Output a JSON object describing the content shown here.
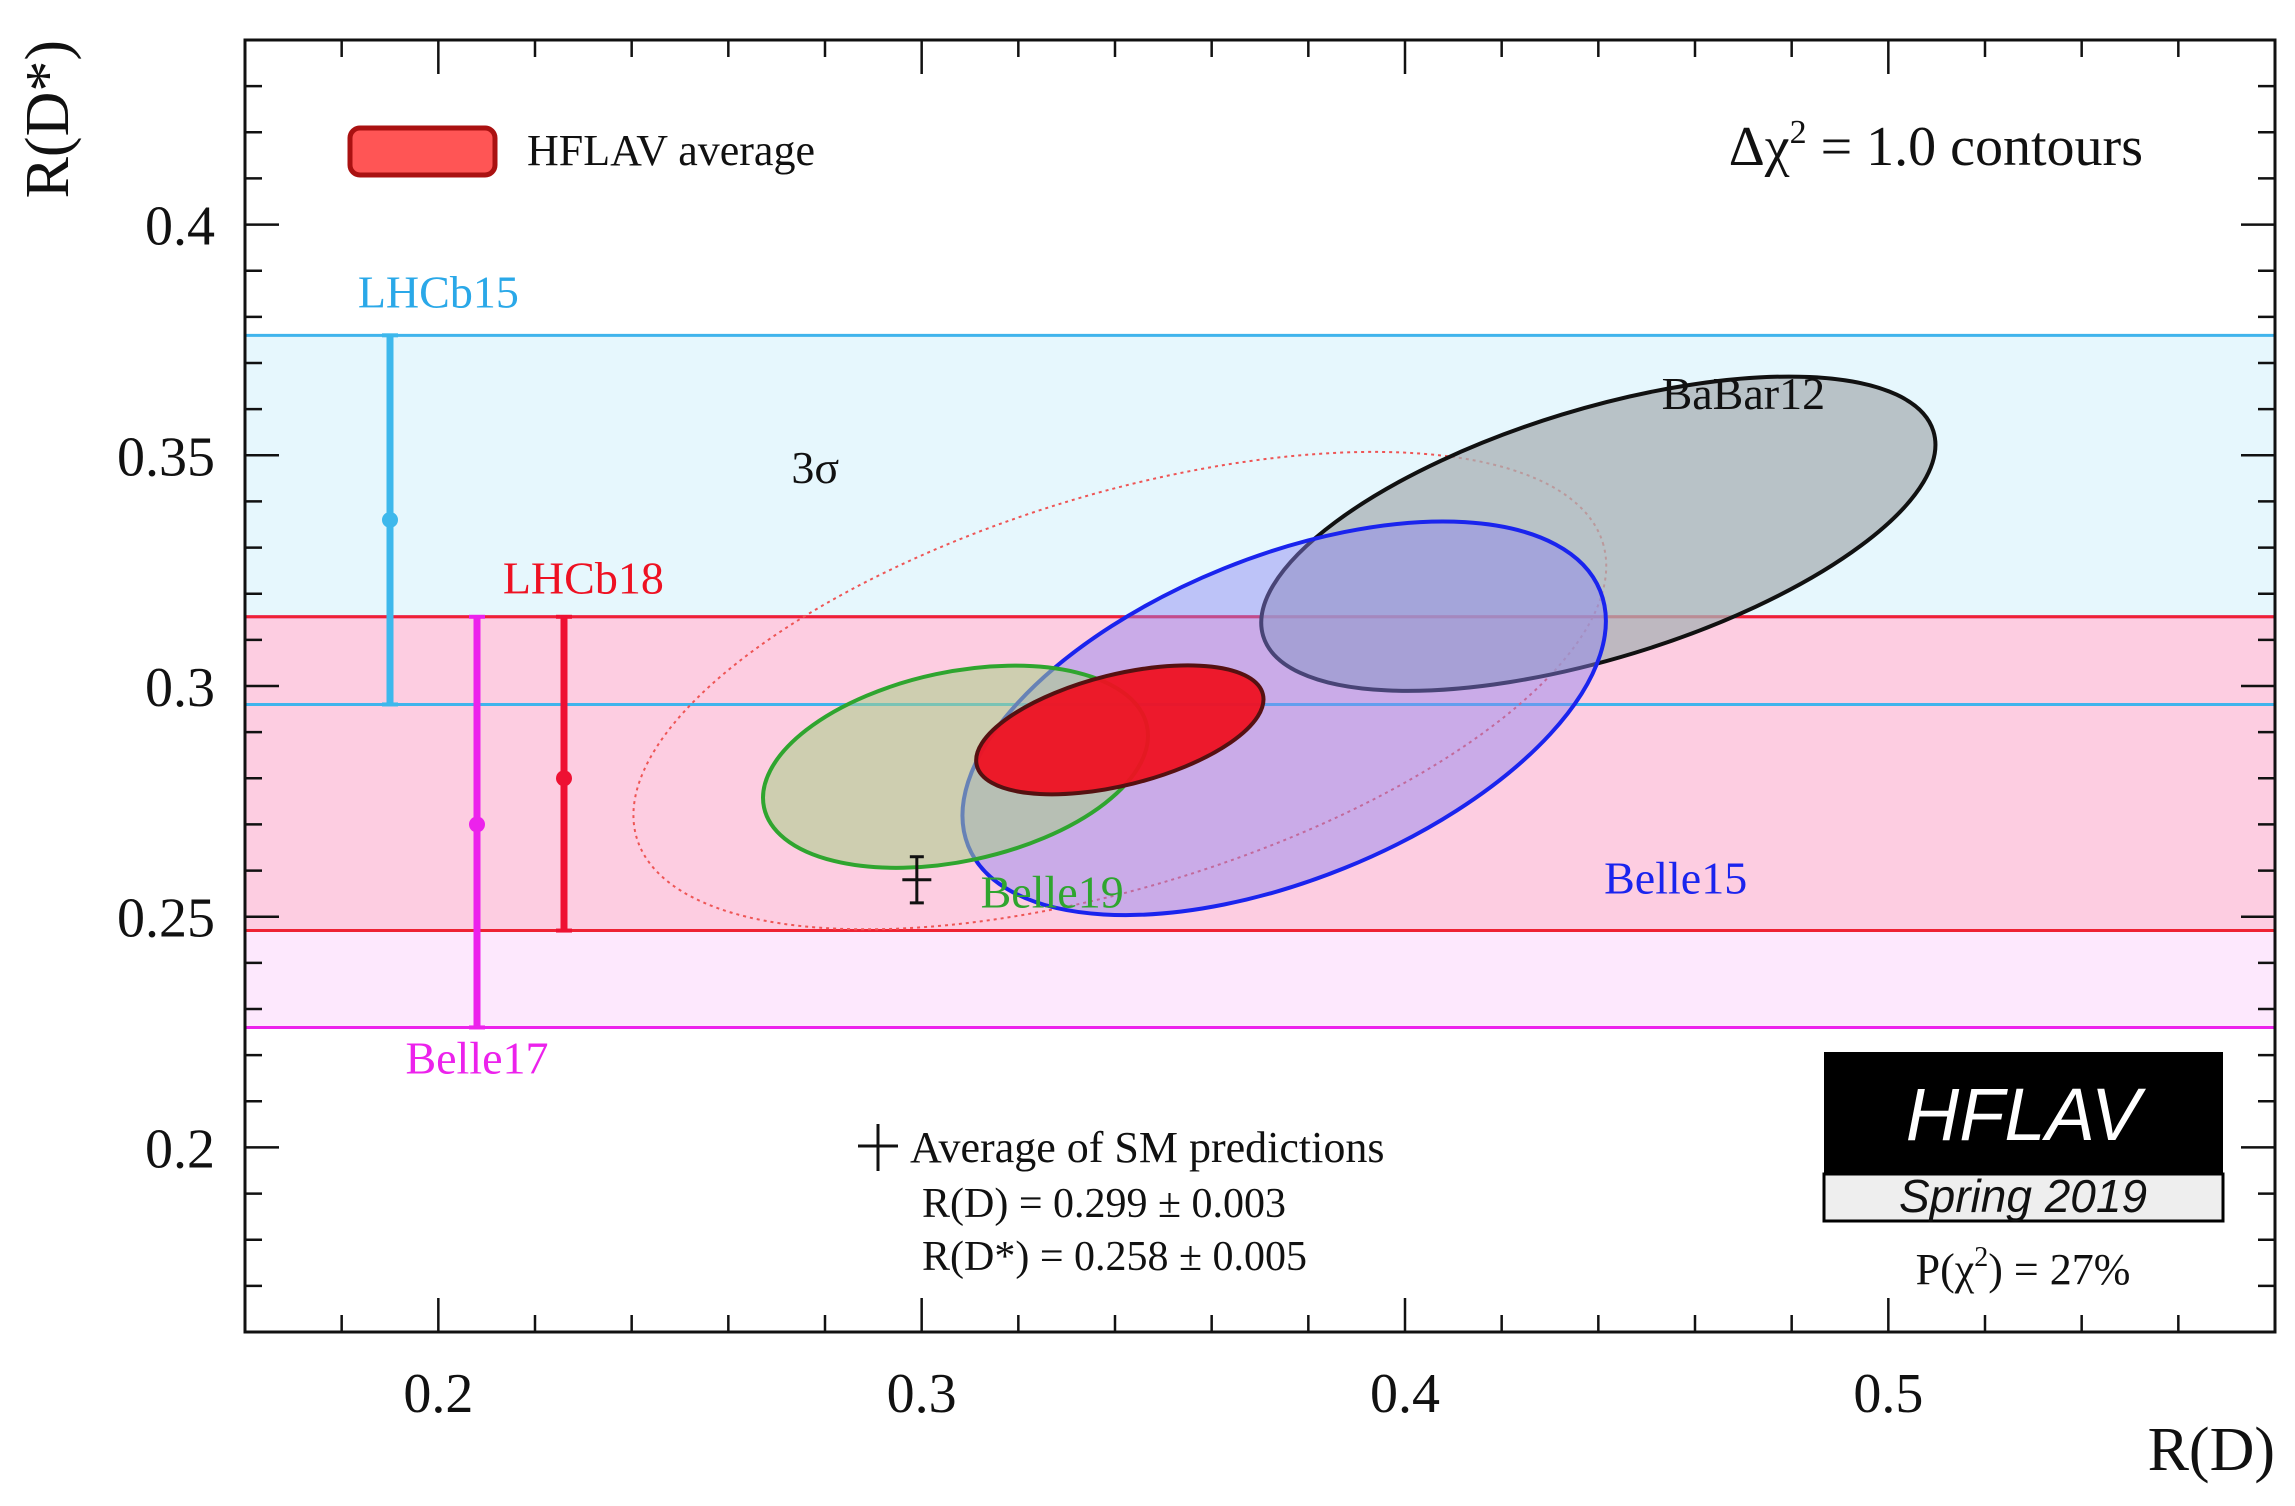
{
  "chart_data": {
    "type": "scatter",
    "subtype": "contour-plot",
    "title": "",
    "xlabel": "R(D)",
    "ylabel": "R(D*)",
    "xlim": [
      0.16,
      0.58
    ],
    "ylim": [
      0.16,
      0.44
    ],
    "xticks": [
      0.2,
      0.3,
      0.4,
      0.5
    ],
    "xtick_labels": [
      "0.2",
      "0.3",
      "0.4",
      "0.5"
    ],
    "yticks": [
      0.2,
      0.25,
      0.3,
      0.35,
      0.4
    ],
    "ytick_labels": [
      "0.2",
      "0.25",
      "0.3",
      "0.35",
      "0.4"
    ],
    "grid": false,
    "contour_note": {
      "prefix": "Δχ",
      "sup": "2",
      "suffix": " = 1.0 contours"
    },
    "legend": [
      {
        "label": "HFLAV average",
        "fill": "#ff5555",
        "stroke": "#aa1111"
      }
    ],
    "bands": [
      {
        "name": "LHCb15",
        "low": 0.296,
        "high": 0.376,
        "fill": "#e2f6fd",
        "line": "#40b4ec"
      },
      {
        "name": "Belle17",
        "low": 0.226,
        "high": 0.315,
        "fill": "#fde4fd",
        "line": "#ec22ec"
      },
      {
        "name": "LHCb18",
        "low": 0.247,
        "high": 0.315,
        "fill": "#fdc8dc",
        "line": "#ee2233"
      }
    ],
    "error_bars": [
      {
        "name": "LHCb15",
        "x": 0.19,
        "y": 0.336,
        "low": 0.296,
        "high": 0.376,
        "color": "#3db8ec"
      },
      {
        "name": "Belle17",
        "x": 0.208,
        "y": 0.27,
        "low": 0.226,
        "high": 0.315,
        "color": "#ec22ec"
      },
      {
        "name": "LHCb18",
        "x": 0.226,
        "y": 0.28,
        "low": 0.247,
        "high": 0.315,
        "color": "#ee1133"
      }
    ],
    "contours": [
      {
        "name": "3σ",
        "cx": 0.341,
        "cy": 0.299,
        "width": 0.209,
        "height": 0.085,
        "angle": -17,
        "fill": "none",
        "stroke": "#ee5555",
        "dashed": true
      },
      {
        "name": "BaBar12",
        "cx": 0.44,
        "cy": 0.333,
        "width": 0.145,
        "height": 0.054,
        "angle": -17,
        "fill": "#a8b0b4",
        "fill_opacity": 0.75,
        "stroke": "#111111"
      },
      {
        "name": "Belle15",
        "cx": 0.375,
        "cy": 0.293,
        "width": 0.141,
        "height": 0.07,
        "angle": -22,
        "fill": "#8c82f2",
        "fill_opacity": 0.45,
        "stroke": "#1a24ee"
      },
      {
        "name": "Belle19",
        "cx": 0.307,
        "cy": 0.2825,
        "width": 0.081,
        "height": 0.041,
        "angle": -12,
        "fill": "#a8d088",
        "fill_opacity": 0.55,
        "stroke": "#2fa52f"
      },
      {
        "name": "HFLAV average",
        "cx": 0.341,
        "cy": 0.2905,
        "width": 0.061,
        "height": 0.024,
        "angle": -14,
        "fill": "#ee1122",
        "fill_opacity": 0.95,
        "stroke": "#551111"
      }
    ],
    "labels": [
      {
        "text": "LHCb15",
        "x": 0.2,
        "y": 0.382,
        "color": "#2aa8e8"
      },
      {
        "text": "LHCb18",
        "x": 0.23,
        "y": 0.32,
        "color": "#ee1122"
      },
      {
        "text": "Belle17",
        "x": 0.208,
        "y": 0.216,
        "color": "#ec22ec"
      },
      {
        "text": "Belle19",
        "x": 0.327,
        "y": 0.252,
        "color": "#2fa52f"
      },
      {
        "text": "Belle15",
        "x": 0.456,
        "y": 0.255,
        "color": "#1a24ee"
      },
      {
        "text": "BaBar12",
        "x": 0.47,
        "y": 0.36,
        "color": "#111111"
      },
      {
        "text": "3σ",
        "x": 0.278,
        "y": 0.344,
        "color": "#111111"
      }
    ],
    "sm_point": {
      "x": 0.299,
      "y": 0.258,
      "x_err": 0.003,
      "y_err": 0.005
    },
    "sm_text": {
      "title": "Average of SM predictions",
      "rd": "R(D) = 0.299 ± 0.003",
      "rdstar": "R(D*) = 0.258 ± 0.005"
    },
    "badge": {
      "title": "HFLAV",
      "subtitle": "Spring 2019"
    },
    "probability": {
      "prefix": "P(χ",
      "sup": "2",
      "suffix": ") = 27%"
    }
  }
}
